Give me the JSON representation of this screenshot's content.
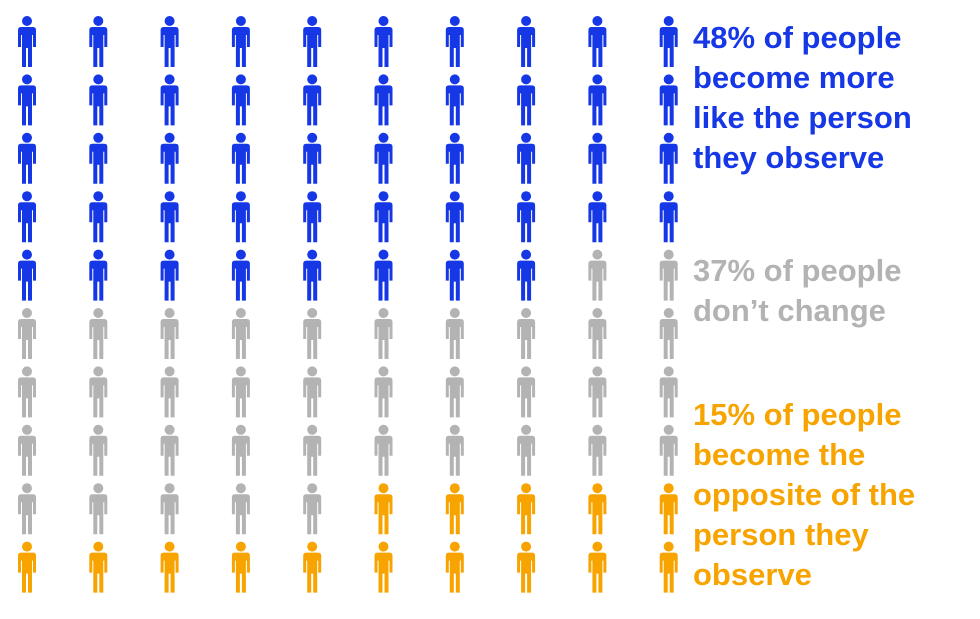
{
  "chart_data": {
    "type": "pictogram",
    "series": [
      {
        "name": "48% of people become more like the person they observe",
        "value": 48,
        "color": "#1537e6"
      },
      {
        "name": "37% of people don’t change",
        "value": 37,
        "color": "#b3b3b3"
      },
      {
        "name": "15% of people become the opposite of the person they observe",
        "value": 15,
        "color": "#f7a400"
      }
    ]
  }
}
